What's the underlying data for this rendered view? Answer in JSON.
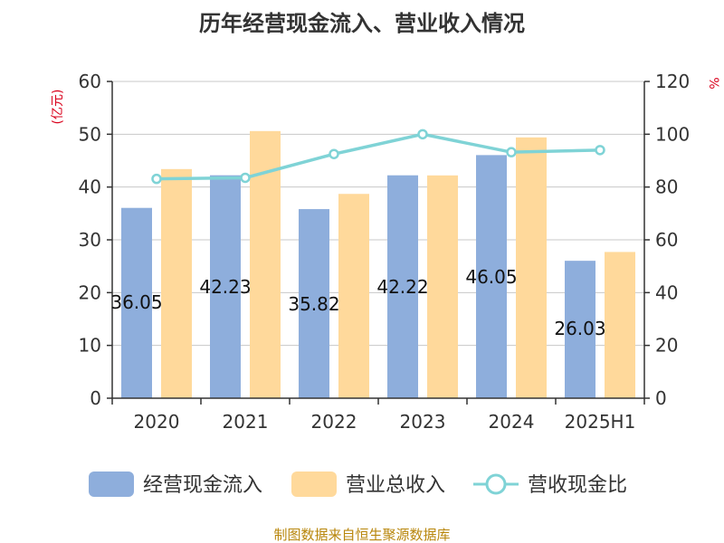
{
  "chart_data": {
    "type": "bar",
    "title": "历年经营现金流入、营业收入情况",
    "categories": [
      "2020",
      "2021",
      "2022",
      "2023",
      "2024",
      "2025H1"
    ],
    "y_left": {
      "unit": "(亿元)",
      "ticks": [
        "0",
        "10",
        "20",
        "30",
        "40",
        "50",
        "60"
      ],
      "range": [
        0,
        60
      ]
    },
    "y_right": {
      "unit": "%",
      "ticks": [
        "0",
        "20",
        "40",
        "60",
        "80",
        "100",
        "120"
      ],
      "range": [
        0,
        120
      ]
    },
    "series": [
      {
        "name": "经营现金流入",
        "kind": "bar",
        "axis": "left",
        "color": "#8eaedc",
        "values": [
          36.05,
          42.23,
          35.82,
          42.22,
          46.05,
          26.03
        ],
        "labels": [
          "36.05",
          "42.23",
          "35.82",
          "42.22",
          "46.05",
          "26.03"
        ]
      },
      {
        "name": "营业总收入",
        "kind": "bar",
        "axis": "left",
        "color": "#ffd99b",
        "values": [
          43.4,
          50.6,
          38.7,
          42.2,
          49.4,
          27.7
        ]
      },
      {
        "name": "营收现金比",
        "kind": "line",
        "axis": "right",
        "color": "#7fd3d6",
        "values": [
          83.1,
          83.5,
          92.5,
          100.0,
          93.2,
          94.0
        ]
      }
    ],
    "legend": "bottom",
    "grid": true
  },
  "footer": {
    "source": "制图数据来自恒生聚源数据库"
  }
}
